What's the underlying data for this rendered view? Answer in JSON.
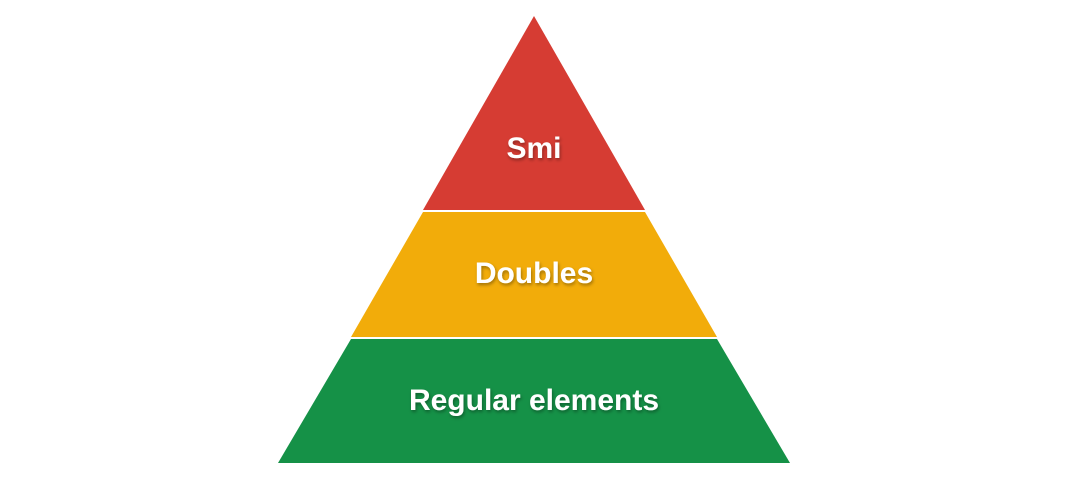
{
  "diagram": {
    "type": "pyramid",
    "tiers": [
      {
        "label": "Smi",
        "color": "#D63C33"
      },
      {
        "label": "Doubles",
        "color": "#F2AC0A"
      },
      {
        "label": "Regular elements",
        "color": "#159147"
      }
    ]
  }
}
